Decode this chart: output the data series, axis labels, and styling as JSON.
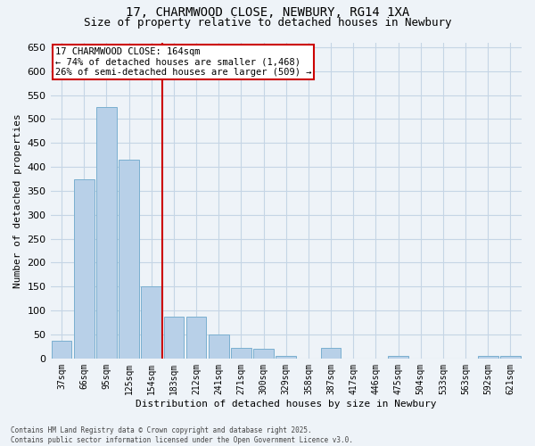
{
  "title": "17, CHARMWOOD CLOSE, NEWBURY, RG14 1XA",
  "subtitle": "Size of property relative to detached houses in Newbury",
  "xlabel": "Distribution of detached houses by size in Newbury",
  "ylabel": "Number of detached properties",
  "footer_line1": "Contains HM Land Registry data © Crown copyright and database right 2025.",
  "footer_line2": "Contains public sector information licensed under the Open Government Licence v3.0.",
  "categories": [
    "37sqm",
    "66sqm",
    "95sqm",
    "125sqm",
    "154sqm",
    "183sqm",
    "212sqm",
    "241sqm",
    "271sqm",
    "300sqm",
    "329sqm",
    "358sqm",
    "387sqm",
    "417sqm",
    "446sqm",
    "475sqm",
    "504sqm",
    "533sqm",
    "563sqm",
    "592sqm",
    "621sqm"
  ],
  "values": [
    37,
    375,
    525,
    415,
    150,
    88,
    88,
    50,
    22,
    20,
    5,
    0,
    22,
    0,
    0,
    5,
    0,
    0,
    0,
    5,
    5
  ],
  "bar_color": "#b8d0e8",
  "bar_edge_color": "#7aafd0",
  "grid_color": "#c5d5e5",
  "background_color": "#eef3f8",
  "vline_color": "#cc0000",
  "annotation_text": "17 CHARMWOOD CLOSE: 164sqm\n← 74% of detached houses are smaller (1,468)\n26% of semi-detached houses are larger (509) →",
  "annotation_box_color": "#ffffff",
  "annotation_box_edge": "#cc0000",
  "ylim": [
    0,
    660
  ],
  "yticks": [
    0,
    50,
    100,
    150,
    200,
    250,
    300,
    350,
    400,
    450,
    500,
    550,
    600,
    650
  ],
  "title_fontsize": 10,
  "subtitle_fontsize": 9,
  "tick_fontsize": 7,
  "ylabel_fontsize": 8,
  "xlabel_fontsize": 8
}
